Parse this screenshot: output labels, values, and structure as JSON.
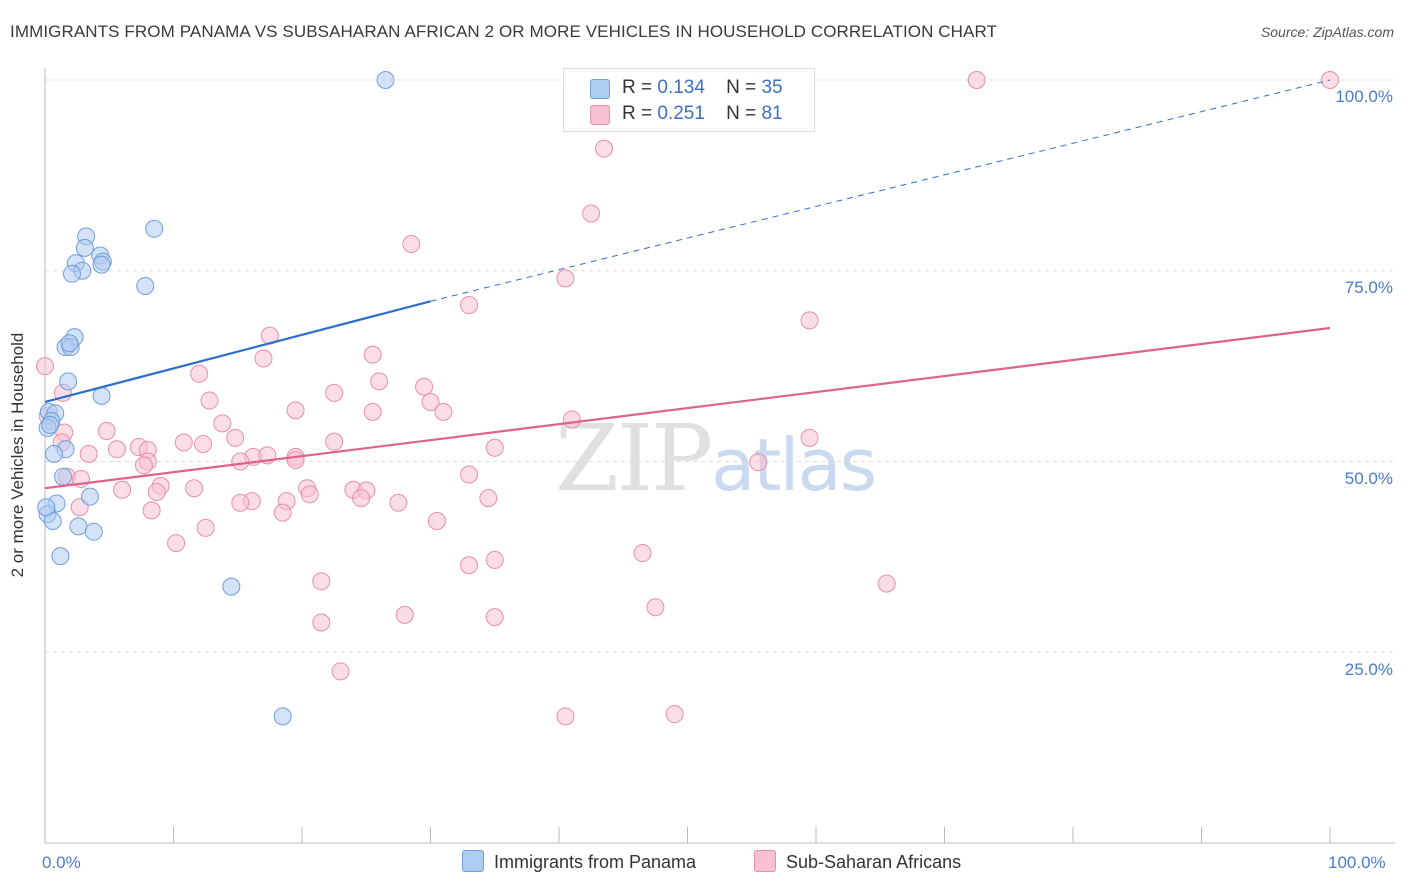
{
  "title": "IMMIGRANTS FROM PANAMA VS SUBSAHARAN AFRICAN 2 OR MORE VEHICLES IN HOUSEHOLD CORRELATION CHART",
  "source": "Source: ZipAtlas.com",
  "watermark": {
    "zip": "ZIP",
    "atlas": "atlas"
  },
  "colors": {
    "blue_fill": "#aecbf0",
    "blue_stroke": "#6f9fdc",
    "blue_line": "#2e6fcc",
    "pink_fill": "#f7c1d1",
    "pink_stroke": "#e88fab",
    "pink_line": "#e0628c",
    "grid": "#dddddd",
    "tick_text": "#4a7cc9"
  },
  "legend_top": [
    {
      "r_label": "R =",
      "r_value": "0.134",
      "n_label": "N =",
      "n_value": "35",
      "color": "#aecbf0"
    },
    {
      "r_label": "R =",
      "r_value": "0.251",
      "n_label": "N =",
      "n_value": "81",
      "color": "#f7c1d1"
    }
  ],
  "legend_bottom": [
    {
      "label": "Immigrants from Panama",
      "color": "#aecbf0"
    },
    {
      "label": "Sub-Saharan Africans",
      "color": "#f7c1d1"
    }
  ],
  "chart_data": {
    "type": "scatter",
    "title": "IMMIGRANTS FROM PANAMA VS SUBSAHARAN AFRICAN 2 OR MORE VEHICLES IN HOUSEHOLD CORRELATION CHART",
    "xlabel": "",
    "ylabel": "2 or more Vehicles in Household",
    "xlim": [
      0,
      100
    ],
    "ylim": [
      0,
      100
    ],
    "x_tick_labels": [
      "0.0%",
      "100.0%"
    ],
    "y_ticks": [
      {
        "value": 100,
        "label": "100.0%"
      },
      {
        "value": 75,
        "label": "75.0%"
      },
      {
        "value": 50,
        "label": "50.0%"
      },
      {
        "value": 25,
        "label": "25.0%"
      }
    ],
    "series": [
      {
        "name": "Immigrants from Panama",
        "color": "#aecbf0",
        "trend": {
          "x0": 0.0,
          "y0": 57.8,
          "x1": 30.0,
          "y1": 71.0,
          "extend_to_x": 100,
          "extend_to_y": 100
        },
        "points": [
          [
            26.5,
            100
          ],
          [
            8.5,
            80.5
          ],
          [
            3.2,
            79.5
          ],
          [
            3.1,
            78.0
          ],
          [
            4.3,
            77.0
          ],
          [
            2.4,
            76.0
          ],
          [
            4.5,
            76.2
          ],
          [
            4.4,
            75.8
          ],
          [
            2.9,
            75.0
          ],
          [
            2.1,
            74.6
          ],
          [
            7.8,
            73.0
          ],
          [
            2.3,
            66.3
          ],
          [
            1.6,
            65.0
          ],
          [
            2.0,
            65.0
          ],
          [
            1.9,
            65.5
          ],
          [
            1.8,
            60.5
          ],
          [
            4.4,
            58.6
          ],
          [
            0.3,
            56.5
          ],
          [
            0.8,
            56.3
          ],
          [
            0.5,
            55.3
          ],
          [
            0.2,
            54.4
          ],
          [
            1.6,
            51.6
          ],
          [
            0.7,
            51.0
          ],
          [
            1.4,
            48.0
          ],
          [
            3.5,
            45.4
          ],
          [
            0.9,
            44.5
          ],
          [
            0.2,
            43.1
          ],
          [
            0.6,
            42.2
          ],
          [
            2.6,
            41.5
          ],
          [
            3.8,
            40.8
          ],
          [
            1.2,
            37.6
          ],
          [
            14.5,
            33.6
          ],
          [
            18.5,
            16.6
          ],
          [
            0.1,
            44.0
          ],
          [
            0.4,
            54.8
          ]
        ]
      },
      {
        "name": "Sub-Saharan Africans",
        "color": "#f7c1d1",
        "trend": {
          "x0": 0.0,
          "y0": 46.5,
          "x1": 100,
          "y1": 67.5
        },
        "points": [
          [
            72.5,
            100
          ],
          [
            100,
            100
          ],
          [
            43.5,
            91.0
          ],
          [
            42.5,
            82.5
          ],
          [
            28.5,
            78.5
          ],
          [
            40.5,
            74.0
          ],
          [
            33.0,
            70.5
          ],
          [
            59.5,
            68.5
          ],
          [
            17.5,
            66.5
          ],
          [
            25.5,
            64.0
          ],
          [
            17.0,
            63.5
          ],
          [
            0.0,
            62.5
          ],
          [
            12.0,
            61.5
          ],
          [
            26.0,
            60.5
          ],
          [
            29.5,
            59.8
          ],
          [
            22.5,
            59.0
          ],
          [
            1.4,
            59.0
          ],
          [
            12.8,
            58.0
          ],
          [
            30.0,
            57.8
          ],
          [
            19.5,
            56.7
          ],
          [
            25.5,
            56.5
          ],
          [
            31.0,
            56.5
          ],
          [
            0.2,
            56.0
          ],
          [
            41.0,
            55.5
          ],
          [
            13.8,
            55.0
          ],
          [
            4.8,
            54.0
          ],
          [
            1.5,
            53.8
          ],
          [
            14.8,
            53.1
          ],
          [
            22.5,
            52.6
          ],
          [
            59.5,
            53.1
          ],
          [
            10.8,
            52.5
          ],
          [
            1.3,
            52.5
          ],
          [
            12.3,
            52.3
          ],
          [
            7.3,
            51.9
          ],
          [
            5.6,
            51.6
          ],
          [
            3.4,
            51.0
          ],
          [
            35.0,
            51.8
          ],
          [
            8.0,
            51.5
          ],
          [
            16.2,
            50.6
          ],
          [
            17.3,
            50.8
          ],
          [
            19.5,
            50.6
          ],
          [
            15.2,
            50.0
          ],
          [
            55.5,
            49.9
          ],
          [
            8.0,
            50.0
          ],
          [
            19.5,
            50.2
          ],
          [
            7.7,
            49.5
          ],
          [
            33.0,
            48.3
          ],
          [
            1.7,
            48.0
          ],
          [
            2.8,
            47.7
          ],
          [
            9.0,
            46.8
          ],
          [
            11.6,
            46.5
          ],
          [
            20.4,
            46.5
          ],
          [
            6.0,
            46.3
          ],
          [
            8.7,
            46.0
          ],
          [
            24.0,
            46.3
          ],
          [
            25.0,
            46.2
          ],
          [
            20.6,
            45.7
          ],
          [
            34.5,
            45.2
          ],
          [
            24.6,
            45.2
          ],
          [
            16.1,
            44.8
          ],
          [
            18.8,
            44.8
          ],
          [
            15.2,
            44.6
          ],
          [
            27.5,
            44.6
          ],
          [
            2.7,
            44.0
          ],
          [
            8.3,
            43.6
          ],
          [
            18.5,
            43.3
          ],
          [
            30.5,
            42.2
          ],
          [
            12.5,
            41.3
          ],
          [
            10.2,
            39.3
          ],
          [
            46.5,
            38.0
          ],
          [
            35.0,
            37.1
          ],
          [
            33.0,
            36.4
          ],
          [
            21.5,
            34.3
          ],
          [
            65.5,
            34.0
          ],
          [
            47.5,
            30.9
          ],
          [
            28.0,
            29.9
          ],
          [
            35.0,
            29.6
          ],
          [
            21.5,
            28.9
          ],
          [
            23.0,
            22.5
          ],
          [
            40.5,
            16.6
          ],
          [
            49.0,
            16.9
          ]
        ]
      }
    ]
  }
}
